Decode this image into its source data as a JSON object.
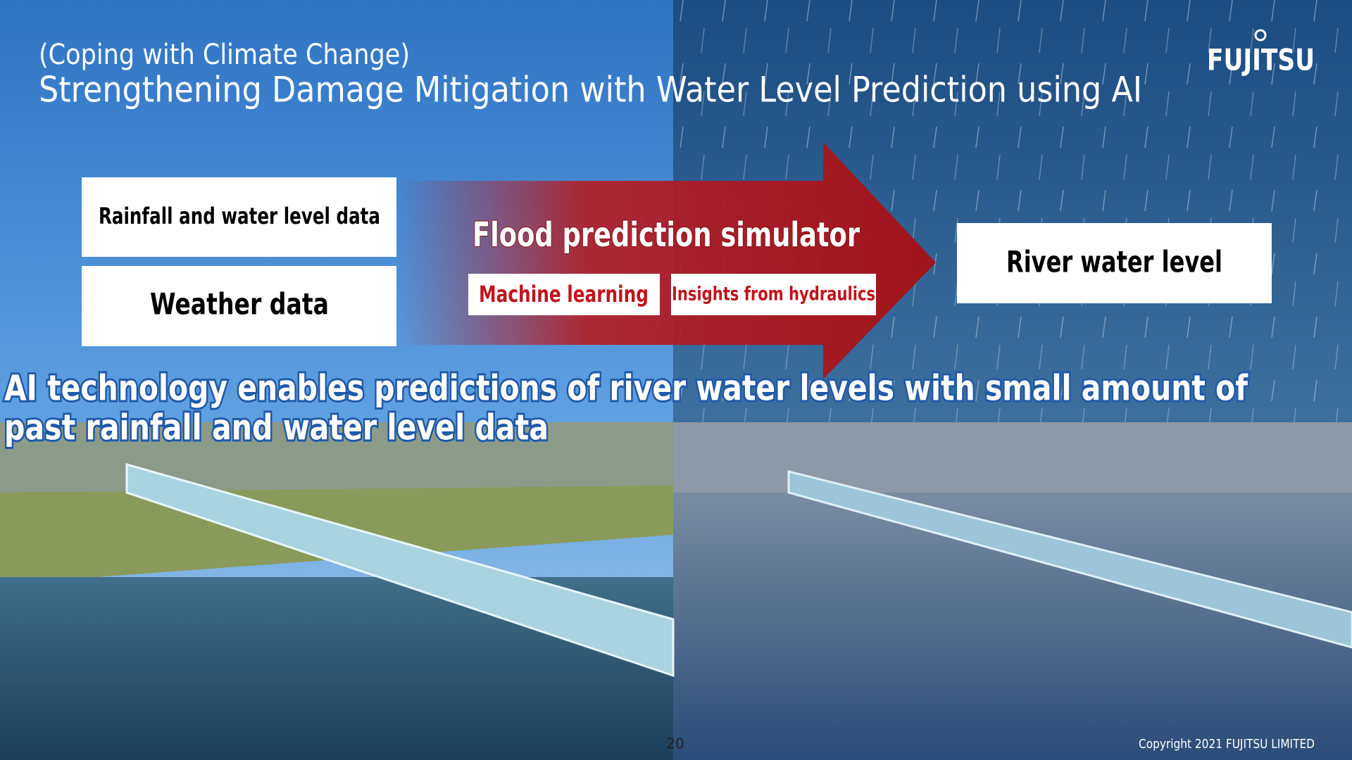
{
  "header": {
    "subtitle": "(Coping with Climate Change)",
    "title": "Strengthening Damage Mitigation with Water Level Prediction using AI",
    "logo": "FUJITSU"
  },
  "inputs": [
    "Rainfall and water level data",
    "Weather data"
  ],
  "simulator": {
    "title": "Flood prediction simulator",
    "methods": [
      "Machine learning",
      "Insights from hydraulics"
    ]
  },
  "output": "River water level",
  "summary": [
    "AI technology enables predictions of river water levels with small amount of",
    "past rainfall and water level data"
  ],
  "footer": {
    "page_number": "20",
    "copyright": "Copyright 2021 FUJITSU LIMITED"
  }
}
